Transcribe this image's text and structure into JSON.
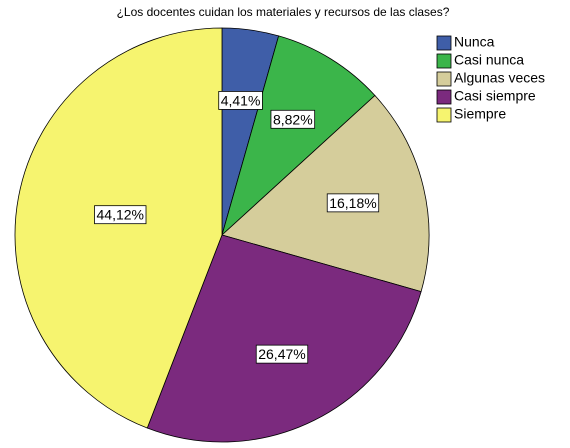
{
  "chart_data": {
    "type": "pie",
    "title": "¿Los docentes cuidan los materiales y recursos de las clases?",
    "categories": [
      "Nunca",
      "Casi nunca",
      "Algunas veces",
      "Casi siempre",
      "Siempre"
    ],
    "values": [
      4.41,
      8.82,
      16.18,
      26.47,
      44.12
    ],
    "value_labels": [
      "4,41%",
      "8,82%",
      "16,18%",
      "26,47%",
      "44,12%"
    ],
    "colors": [
      "#3f5ea8",
      "#3bb54a",
      "#d5cd9b",
      "#7b2a7e",
      "#f6f46f"
    ],
    "legend": "top-right"
  }
}
